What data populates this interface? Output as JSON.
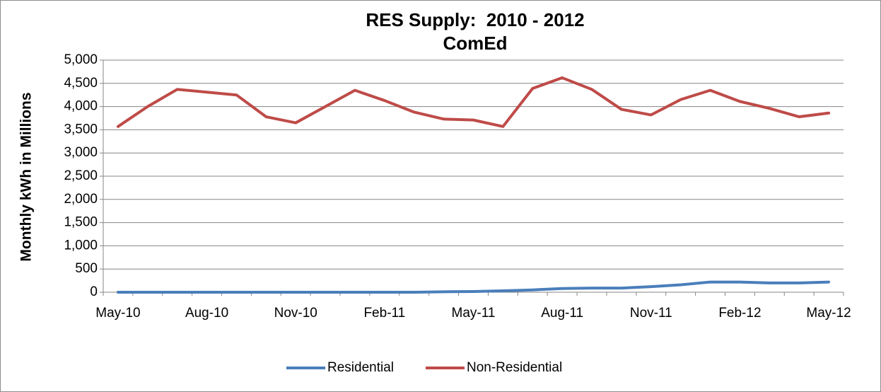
{
  "chart_data": {
    "type": "line",
    "title": "RES Supply:  2010 - 2012",
    "subtitle": "ComEd",
    "y_label": "Monthly kWh in Millions",
    "categories": [
      "May-10",
      null,
      null,
      "Aug-10",
      null,
      null,
      "Nov-10",
      null,
      null,
      "Feb-11",
      null,
      null,
      "May-11",
      null,
      null,
      "Aug-11",
      null,
      null,
      "Nov-11",
      null,
      null,
      "Feb-12",
      null,
      null,
      "May-12"
    ],
    "series": [
      {
        "name": "Residential",
        "color": "#4a7ebb",
        "values": [
          0,
          0,
          0,
          0,
          0,
          0,
          0,
          0,
          0,
          0,
          0,
          10,
          15,
          30,
          50,
          80,
          90,
          90,
          120,
          160,
          220,
          220,
          200,
          200,
          220
        ]
      },
      {
        "name": "Non-Residential",
        "color": "#be4b48",
        "values": [
          3570,
          4000,
          4370,
          4310,
          4250,
          3780,
          3650,
          4000,
          4350,
          4130,
          3880,
          3730,
          3710,
          3570,
          4390,
          4620,
          4370,
          3940,
          3820,
          4150,
          4350,
          4110,
          3960,
          3780,
          3860
        ]
      }
    ],
    "ylim": [
      0,
      5000
    ],
    "yticks": [
      0,
      500,
      {
        "value": 1000,
        "label": "1,000"
      },
      {
        "value": 1500,
        "label": "1,500"
      },
      {
        "value": 2000,
        "label": "2,000"
      },
      {
        "value": 2500,
        "label": "2,500"
      },
      {
        "value": 3000,
        "label": "3,000"
      },
      {
        "value": 3500,
        "label": "3,500"
      },
      {
        "value": 4000,
        "label": "4,000"
      },
      {
        "value": 4500,
        "label": "4,500"
      },
      {
        "value": 5000,
        "label": "5,000"
      }
    ],
    "grid": true,
    "legend": "bottom"
  }
}
